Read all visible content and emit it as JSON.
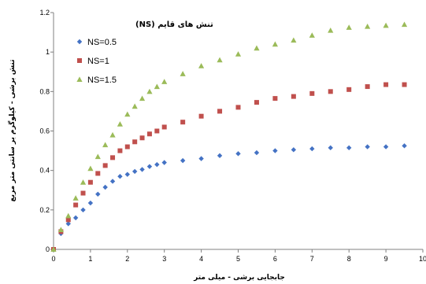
{
  "chart_data": {
    "type": "scatter",
    "xlabel": "جابجایی برشی - میلی متر",
    "ylabel": "تنش برشی - کیلوگرم بر سانتی متر مربع",
    "xlim": [
      0,
      10
    ],
    "ylim": [
      0,
      1.2
    ],
    "xticks": [
      "0",
      "1",
      "2",
      "3",
      "4",
      "5",
      "6",
      "7",
      "8",
      "9",
      "10"
    ],
    "yticks": [
      "0",
      "0.2",
      "0.4",
      "0.6",
      "0.8",
      "1",
      "1.2"
    ],
    "grid": false,
    "legend": {
      "title": "تنش های قایم (NS)",
      "placement": "top-left"
    },
    "series": [
      {
        "name": "NS=0.5",
        "marker": "diamond",
        "color": "#4472c4",
        "x": [
          0,
          0.2,
          0.4,
          0.6,
          0.8,
          1.0,
          1.2,
          1.4,
          1.6,
          1.8,
          2.0,
          2.2,
          2.4,
          2.6,
          2.8,
          3.0,
          3.5,
          4.0,
          4.5,
          5.0,
          5.5,
          6.0,
          6.5,
          7.0,
          7.5,
          8.0,
          8.5,
          9.0,
          9.5
        ],
        "y": [
          0,
          0.08,
          0.13,
          0.16,
          0.2,
          0.235,
          0.28,
          0.315,
          0.345,
          0.37,
          0.38,
          0.395,
          0.405,
          0.42,
          0.43,
          0.44,
          0.45,
          0.46,
          0.475,
          0.485,
          0.49,
          0.5,
          0.505,
          0.51,
          0.515,
          0.515,
          0.52,
          0.52,
          0.525
        ]
      },
      {
        "name": "NS=1",
        "marker": "square",
        "color": "#c0504d",
        "x": [
          0,
          0.2,
          0.4,
          0.6,
          0.8,
          1.0,
          1.2,
          1.4,
          1.6,
          1.8,
          2.0,
          2.2,
          2.4,
          2.6,
          2.8,
          3.0,
          3.5,
          4.0,
          4.5,
          5.0,
          5.5,
          6.0,
          6.5,
          7.0,
          7.5,
          8.0,
          8.5,
          9.0,
          9.5
        ],
        "y": [
          0,
          0.09,
          0.15,
          0.225,
          0.285,
          0.34,
          0.385,
          0.425,
          0.465,
          0.5,
          0.52,
          0.545,
          0.565,
          0.585,
          0.6,
          0.62,
          0.645,
          0.675,
          0.7,
          0.72,
          0.745,
          0.765,
          0.775,
          0.79,
          0.8,
          0.81,
          0.825,
          0.835,
          0.835
        ]
      },
      {
        "name": "NS=1.5",
        "marker": "triangle",
        "color": "#9bbb59",
        "x": [
          0,
          0.2,
          0.4,
          0.6,
          0.8,
          1.0,
          1.2,
          1.4,
          1.6,
          1.8,
          2.0,
          2.2,
          2.4,
          2.6,
          2.8,
          3.0,
          3.5,
          4.0,
          4.5,
          5.0,
          5.5,
          6.0,
          6.5,
          7.0,
          7.5,
          8.0,
          8.5,
          9.0,
          9.5
        ],
        "y": [
          0,
          0.1,
          0.17,
          0.26,
          0.34,
          0.41,
          0.47,
          0.53,
          0.58,
          0.635,
          0.685,
          0.725,
          0.765,
          0.8,
          0.825,
          0.85,
          0.89,
          0.93,
          0.96,
          0.99,
          1.02,
          1.04,
          1.06,
          1.085,
          1.11,
          1.125,
          1.13,
          1.135,
          1.14
        ]
      }
    ]
  }
}
